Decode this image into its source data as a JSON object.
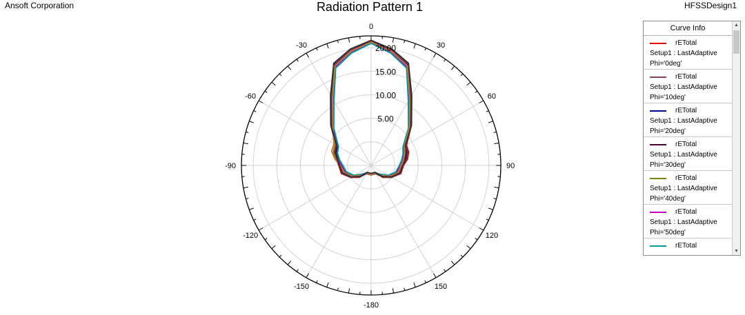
{
  "header": {
    "company": "Ansoft Corporation",
    "design": "HFSSDesign1",
    "title": "Radiation Pattern 1"
  },
  "legend": {
    "title": "Curve Info",
    "entries": [
      {
        "name": "rETotal",
        "setup": "Setup1 : LastAdaptive",
        "phi": "Phi='0deg'",
        "color": "#e00000"
      },
      {
        "name": "rETotal",
        "setup": "Setup1 : LastAdaptive",
        "phi": "Phi='10deg'",
        "color": "#8b3a62"
      },
      {
        "name": "rETotal",
        "setup": "Setup1 : LastAdaptive",
        "phi": "Phi='20deg'",
        "color": "#00008b"
      },
      {
        "name": "rETotal",
        "setup": "Setup1 : LastAdaptive",
        "phi": "Phi='30deg'",
        "color": "#4b0040"
      },
      {
        "name": "rETotal",
        "setup": "Setup1 : LastAdaptive",
        "phi": "Phi='40deg'",
        "color": "#808000"
      },
      {
        "name": "rETotal",
        "setup": "Setup1 : LastAdaptive",
        "phi": "Phi='50deg'",
        "color": "#c000c0"
      },
      {
        "name": "rETotal",
        "setup": "",
        "phi": "",
        "color": "#0096a0"
      }
    ]
  },
  "chart_data": {
    "type": "polar-line",
    "title": "Radiation Pattern 1",
    "angle_ticks": [
      0,
      30,
      60,
      90,
      120,
      150,
      -180,
      -150,
      -120,
      -90,
      -60,
      -30
    ],
    "radial_ticks": [
      "5.00",
      "10.00",
      "15.00",
      "20.00"
    ],
    "r_range": [
      -5,
      22.5
    ],
    "series": [
      {
        "name": "rETotal Phi='0deg'",
        "color": "#e00000",
        "theta": [
          -180,
          -150,
          -135,
          -120,
          -105,
          -90,
          -80,
          -70,
          -60,
          -45,
          -30,
          -20,
          -10,
          0,
          10,
          20,
          30,
          45,
          60,
          70,
          80,
          90,
          105,
          120,
          135,
          150,
          180
        ],
        "r": [
          -3,
          -3.2,
          -1.5,
          0,
          1.5,
          1.8,
          2.5,
          3.4,
          3.6,
          7,
          12,
          18,
          20,
          21.5,
          20,
          18,
          12,
          7,
          3.6,
          3.4,
          2.8,
          1.8,
          1.5,
          0,
          -1.5,
          -3.2,
          -3
        ]
      },
      {
        "name": "rETotal Phi='10deg'",
        "color": "#8b3a62",
        "theta": [
          -180,
          -150,
          -135,
          -120,
          -105,
          -90,
          -80,
          -70,
          -60,
          -45,
          -30,
          -20,
          -10,
          0,
          10,
          20,
          30,
          45,
          60,
          70,
          80,
          90,
          105,
          120,
          135,
          150,
          180
        ],
        "r": [
          -3,
          -3,
          -1.6,
          0,
          1.4,
          1.7,
          2.4,
          3.2,
          3.5,
          6.8,
          11.8,
          17.8,
          19.8,
          21.4,
          19.8,
          17.8,
          11.8,
          6.8,
          3.5,
          3.2,
          2.6,
          1.7,
          1.4,
          0,
          -1.6,
          -3,
          -3
        ]
      },
      {
        "name": "rETotal Phi='20deg'",
        "color": "#00008b",
        "theta": [
          -180,
          -150,
          -135,
          -120,
          -105,
          -90,
          -80,
          -70,
          -60,
          -45,
          -30,
          -20,
          -10,
          0,
          10,
          20,
          30,
          45,
          60,
          70,
          80,
          90,
          105,
          120,
          135,
          150,
          180
        ],
        "r": [
          -3,
          -3,
          -1.8,
          -0.2,
          1.2,
          1.6,
          2.2,
          3,
          3.3,
          6.6,
          11.5,
          17.6,
          19.6,
          21.3,
          19.6,
          17.6,
          11.5,
          6.6,
          3.3,
          3,
          2.4,
          1.6,
          1.2,
          -0.2,
          -1.8,
          -3,
          -3
        ]
      },
      {
        "name": "rETotal Phi='30deg'",
        "color": "#4b0040",
        "theta": [
          -180,
          -150,
          -135,
          -120,
          -105,
          -90,
          -80,
          -70,
          -60,
          -45,
          -30,
          -20,
          -10,
          0,
          10,
          20,
          30,
          45,
          60,
          70,
          80,
          90,
          105,
          120,
          135,
          150,
          180
        ],
        "r": [
          -3,
          -3,
          -2,
          -0.4,
          1,
          1.5,
          2,
          2.8,
          3.2,
          6.5,
          11.3,
          17.4,
          19.5,
          21.2,
          19.5,
          17.4,
          11.3,
          6.5,
          3.2,
          2.8,
          2.2,
          1.5,
          1,
          -0.4,
          -2,
          -3,
          -3
        ]
      },
      {
        "name": "rETotal Phi='40deg'",
        "color": "#808000",
        "theta": [
          -180,
          -150,
          -135,
          -120,
          -105,
          -90,
          -80,
          -70,
          -60,
          -45,
          -30,
          -20,
          -10,
          0,
          10,
          20,
          30,
          45,
          60,
          70,
          80,
          90,
          105,
          120,
          135,
          150,
          180
        ],
        "r": [
          -3,
          -3.1,
          -2,
          -0.5,
          0.8,
          1.4,
          2.6,
          3.5,
          3.8,
          6.4,
          11.2,
          17.3,
          19.4,
          21.1,
          19.4,
          17.3,
          11.2,
          6.4,
          3.0,
          2.6,
          2,
          1.4,
          0.8,
          -0.5,
          -2,
          -3.1,
          -3
        ]
      },
      {
        "name": "rETotal Phi='50deg'",
        "color": "#c000c0",
        "theta": [
          -180,
          -150,
          -135,
          -120,
          -105,
          -90,
          -80,
          -70,
          -60,
          -45,
          -30,
          -20,
          -10,
          0,
          10,
          20,
          30,
          45,
          60,
          70,
          80,
          90,
          105,
          120,
          135,
          150,
          180
        ],
        "r": [
          -3,
          -3.1,
          -2.2,
          -0.6,
          0.6,
          1.2,
          2.2,
          3.2,
          3.5,
          6.3,
          11,
          17.2,
          19.3,
          21,
          19.3,
          17.2,
          11,
          6.3,
          2.9,
          2.4,
          1.8,
          1.2,
          0.6,
          -0.6,
          -2.2,
          -3.1,
          -3
        ]
      },
      {
        "name": "rETotal",
        "color": "#0096a0",
        "theta": [
          -180,
          -150,
          -135,
          -120,
          -105,
          -90,
          -80,
          -70,
          -60,
          -45,
          -30,
          -20,
          -10,
          0,
          10,
          20,
          30,
          45,
          60,
          70,
          80,
          90,
          105,
          120,
          135,
          150,
          180
        ],
        "r": [
          -3,
          -3.2,
          -2.4,
          -0.8,
          0.4,
          1,
          1.8,
          2.6,
          3,
          6.2,
          10.8,
          17,
          19.2,
          20.9,
          19.2,
          17,
          10.8,
          6.2,
          2.8,
          2.2,
          1.6,
          1,
          0.4,
          -0.8,
          -2.4,
          -3.2,
          -3
        ]
      },
      {
        "name": "",
        "color": "#c87832",
        "theta": [
          -180,
          -150,
          -135,
          -120,
          -105,
          -90,
          -80,
          -70,
          -60,
          -45,
          -30,
          -20,
          -10,
          0,
          10,
          20,
          30,
          45,
          60,
          70,
          80,
          90,
          105,
          120,
          135,
          150,
          180
        ],
        "r": [
          -3,
          -3.1,
          -2,
          -0.4,
          1,
          1.6,
          2.8,
          3.9,
          4.1,
          6.5,
          11.4,
          17.5,
          19.6,
          21.2,
          19.6,
          17.5,
          11.4,
          6.5,
          3.2,
          2.6,
          2,
          1.4,
          1,
          -0.4,
          -2,
          -3.1,
          -3
        ]
      },
      {
        "name": "",
        "color": "#303030",
        "theta": [
          -180,
          -150,
          -135,
          -120,
          -105,
          -90,
          -80,
          -70,
          -60,
          -45,
          -30,
          -20,
          -10,
          0,
          10,
          20,
          30,
          45,
          60,
          70,
          80,
          90,
          105,
          120,
          135,
          150,
          180
        ],
        "r": [
          -3.3,
          -3.3,
          -1.7,
          -0.1,
          1.3,
          1.7,
          2.3,
          3.1,
          3.4,
          7.1,
          12.2,
          18.1,
          20.1,
          21.5,
          20.1,
          18.1,
          12.2,
          7.1,
          3.4,
          3.1,
          2.5,
          1.7,
          1.3,
          -0.1,
          -1.7,
          -3.3,
          -3.3
        ]
      }
    ]
  }
}
